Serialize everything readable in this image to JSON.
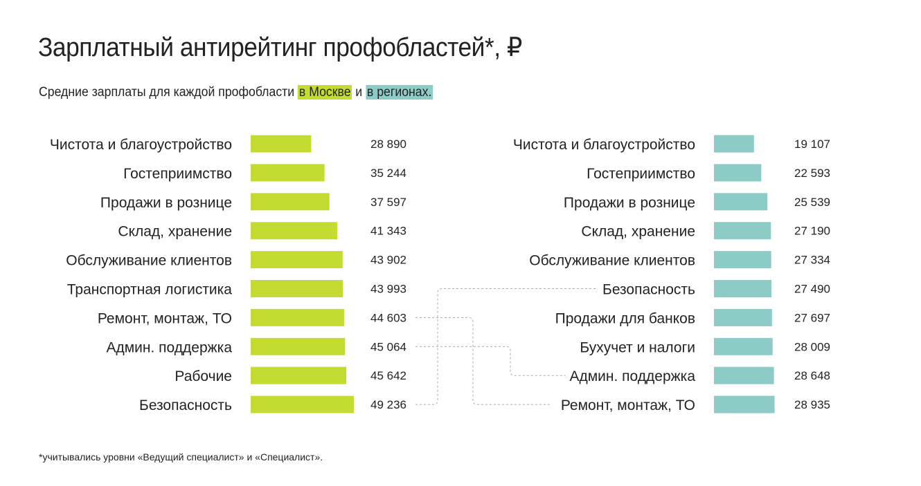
{
  "title": "Зарплатный антирейтинг профобластей*, ₽",
  "subtitle": {
    "prefix": "Средние зарплаты для каждой профобласти ",
    "moscow": "в Москве",
    "and": " и ",
    "regions": "в регионах."
  },
  "footnote": "*учитывались уровни «Ведущий специалист» и «Специалист».",
  "colors": {
    "moscow": "#c4dc32",
    "regions": "#8ccbc6"
  },
  "chart_data": [
    {
      "type": "bar",
      "orientation": "horizontal",
      "series_color": "#c4dc32",
      "categories": [
        "Чистота и благоустройство",
        "Гостеприимство",
        "Продажи в рознице",
        "Склад, хранение",
        "Обслуживание клиентов",
        "Транспортная логистика",
        "Ремонт, монтаж, ТО",
        "Админ. поддержка",
        "Рабочие",
        "Безопасность"
      ],
      "values": [
        28890,
        35244,
        37597,
        41343,
        43902,
        43993,
        44603,
        45064,
        45642,
        49236
      ],
      "value_labels": [
        "28 890",
        "35 244",
        "37 597",
        "41 343",
        "43 902",
        "43 993",
        "44 603",
        "45 064",
        "45 642",
        "49 236"
      ]
    },
    {
      "type": "bar",
      "orientation": "horizontal",
      "series_color": "#8ccbc6",
      "categories": [
        "Чистота и благоустройство",
        "Гостеприимство",
        "Продажи в рознице",
        "Склад, хранение",
        "Обслуживание клиентов",
        "Безопасность",
        "Продажи для банков",
        "Бухучет и налоги",
        "Админ. поддержка",
        "Ремонт, монтаж, ТО"
      ],
      "values": [
        19107,
        22593,
        25539,
        27190,
        27334,
        27490,
        27697,
        28009,
        28648,
        28935
      ],
      "value_labels": [
        "19 107",
        "22 593",
        "25 539",
        "27 190",
        "27 334",
        "27 490",
        "27 697",
        "28 009",
        "28 648",
        "28 935"
      ]
    }
  ],
  "connectors": [
    {
      "from": "Безопасность",
      "to": "Безопасность"
    },
    {
      "from": "Ремонт, монтаж, ТО",
      "to": "Ремонт, монтаж, ТО"
    },
    {
      "from": "Админ. поддержка",
      "to": "Админ. поддержка"
    }
  ]
}
